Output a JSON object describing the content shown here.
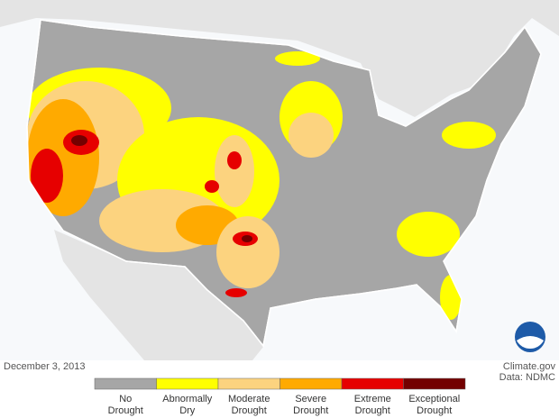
{
  "map": {
    "date": "December 3, 2013",
    "source": "Climate.gov",
    "credit": "Data: NDMC",
    "legend": [
      {
        "label": [
          "No",
          "Drought"
        ],
        "color": "#a6a6a6"
      },
      {
        "label": [
          "Abnormally",
          "Dry"
        ],
        "color": "#ffff00"
      },
      {
        "label": [
          "Moderate",
          "Drought"
        ],
        "color": "#fcd37f"
      },
      {
        "label": [
          "Severe",
          "Drought"
        ],
        "color": "#ffaa00"
      },
      {
        "label": [
          "Extreme",
          "Drought"
        ],
        "color": "#e60000"
      },
      {
        "label": [
          "Exceptional",
          "Drought"
        ],
        "color": "#730000"
      }
    ]
  }
}
